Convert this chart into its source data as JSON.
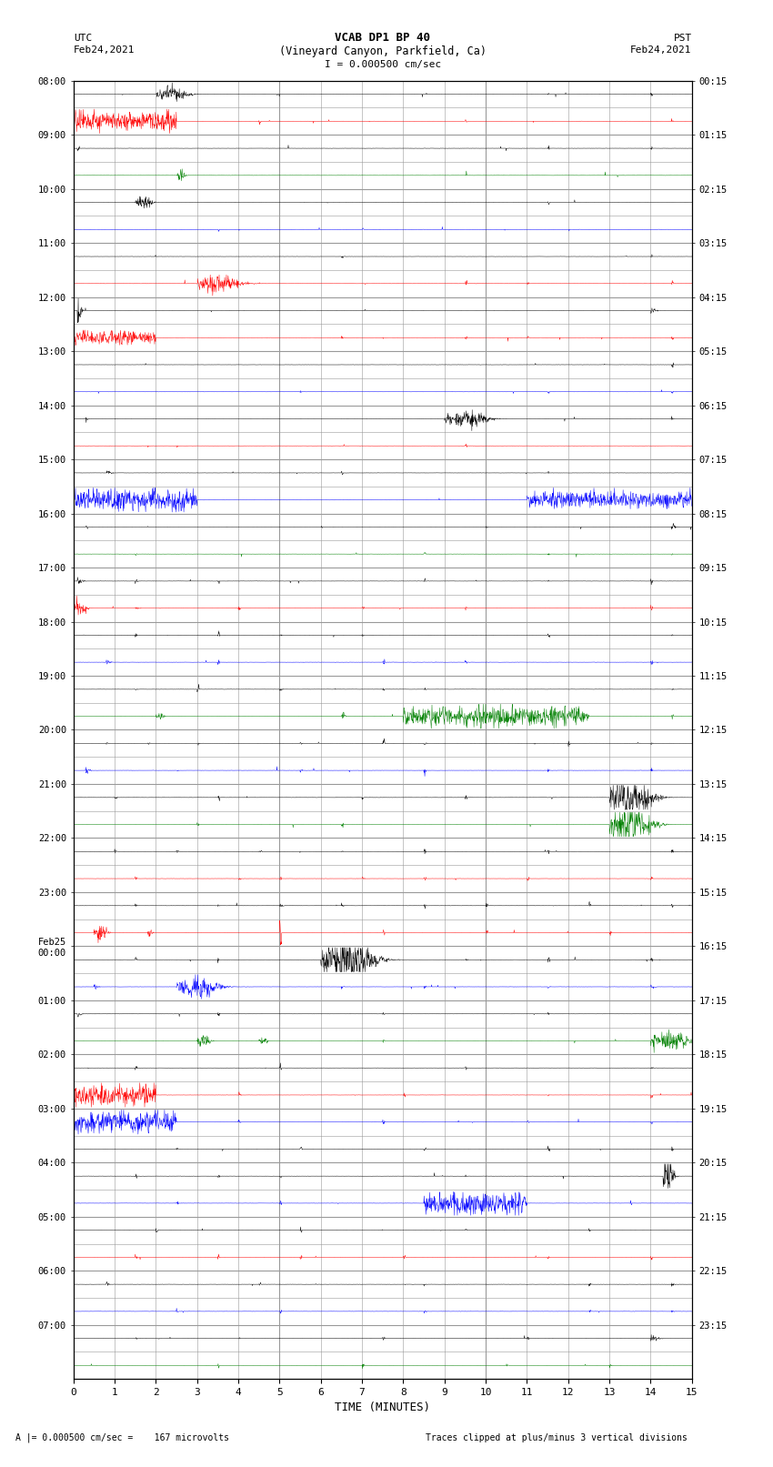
{
  "title_line1": "VCAB DP1 BP 40",
  "title_line2": "(Vineyard Canyon, Parkfield, Ca)",
  "title_line3": "I = 0.000500 cm/sec",
  "left_label_line1": "UTC",
  "left_label_line2": "Feb24,2021",
  "right_label_line1": "PST",
  "right_label_line2": "Feb24,2021",
  "xlabel": "TIME (MINUTES)",
  "bottom_left": "A |= 0.000500 cm/sec =    167 microvolts",
  "bottom_right": "Traces clipped at plus/minus 3 vertical divisions",
  "utc_times_even": [
    "08:00",
    "09:00",
    "10:00",
    "11:00",
    "12:00",
    "13:00",
    "14:00",
    "15:00",
    "16:00",
    "17:00",
    "18:00",
    "19:00",
    "20:00",
    "21:00",
    "22:00",
    "23:00",
    "Feb25\n00:00",
    "01:00",
    "02:00",
    "03:00",
    "04:00",
    "05:00",
    "06:00",
    "07:00"
  ],
  "pst_times_even": [
    "00:15",
    "01:15",
    "02:15",
    "03:15",
    "04:15",
    "05:15",
    "06:15",
    "07:15",
    "08:15",
    "09:15",
    "10:15",
    "11:15",
    "12:15",
    "13:15",
    "14:15",
    "15:15",
    "16:15",
    "17:15",
    "18:15",
    "19:15",
    "20:15",
    "21:15",
    "22:15",
    "23:15"
  ],
  "num_rows": 48,
  "x_min": 0,
  "x_max": 15,
  "x_ticks": [
    0,
    1,
    2,
    3,
    4,
    5,
    6,
    7,
    8,
    9,
    10,
    11,
    12,
    13,
    14,
    15
  ],
  "grid_color": "#999999",
  "bg_color": "#ffffff",
  "trace_colors": [
    "black",
    "red",
    "blue",
    "green"
  ],
  "figsize": [
    8.5,
    16.13
  ],
  "dpi": 100
}
